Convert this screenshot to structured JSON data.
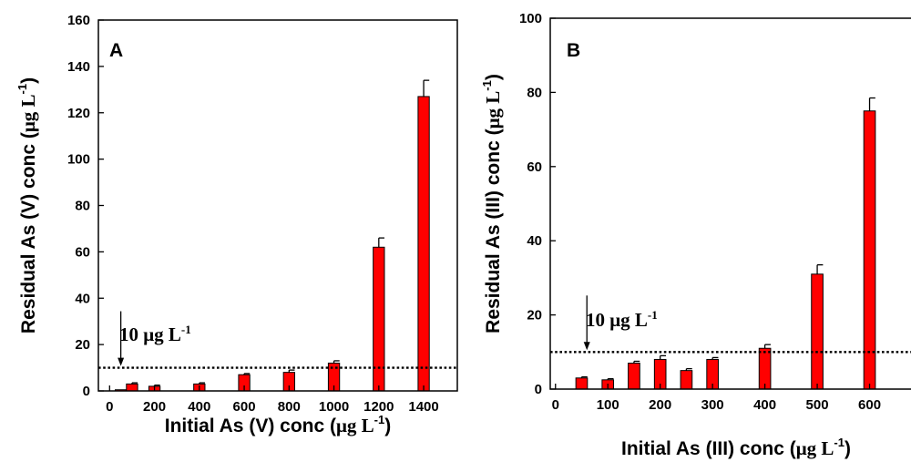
{
  "chart_data": [
    {
      "type": "bar",
      "panel_label": "A",
      "xlabel": "Initial As (V) conc (μg L-1)",
      "xlabel_parts": {
        "main": "Initial As (V) conc (",
        "unit": "μg L",
        "sup": "-1",
        "close": ")"
      },
      "ylabel": "Residual As (V) conc (μg L-1)",
      "ylabel_parts": {
        "main": "Residual As (V) conc (",
        "unit": "μg L",
        "sup": "-1",
        "close": ")"
      },
      "xlim": [
        -50,
        1550
      ],
      "ylim": [
        0,
        160
      ],
      "x_ticks": [
        "0",
        "200",
        "400",
        "600",
        "800",
        "1000",
        "1200",
        "1400"
      ],
      "x_tick_values": [
        0,
        200,
        400,
        600,
        800,
        1000,
        1200,
        1400
      ],
      "y_ticks": [
        "0",
        "20",
        "40",
        "60",
        "80",
        "100",
        "120",
        "140",
        "160"
      ],
      "y_tick_values": [
        0,
        20,
        40,
        60,
        80,
        100,
        120,
        140,
        160
      ],
      "bar_width": 50,
      "x": [
        50,
        100,
        200,
        400,
        600,
        800,
        1000,
        1200,
        1400
      ],
      "values": [
        0.5,
        3,
        2,
        3,
        7,
        8,
        12,
        62,
        127
      ],
      "errors": [
        0,
        0.5,
        0.5,
        0.5,
        0.5,
        1,
        1,
        4,
        7
      ],
      "bar_color": "#ff0000",
      "threshold": {
        "value": 10,
        "label": "10 μg L",
        "label_sup": "-1",
        "arrow_x": 50
      }
    },
    {
      "type": "bar",
      "panel_label": "B",
      "xlabel": "Initial As (III) conc (μg L-1)",
      "xlabel_parts": {
        "main": "Initial As (III) conc (",
        "unit": "μg L",
        "sup": "-1",
        "close": ")"
      },
      "ylabel": "Residual As (III) conc (μg L-1)",
      "ylabel_parts": {
        "main": "Residual As (III) conc (",
        "unit": "μg L",
        "sup": "-1",
        "close": ")"
      },
      "xlim": [
        -10,
        700
      ],
      "ylim": [
        0,
        100
      ],
      "x_ticks": [
        "0",
        "100",
        "200",
        "300",
        "400",
        "500",
        "600"
      ],
      "x_tick_values": [
        0,
        100,
        200,
        300,
        400,
        500,
        600
      ],
      "y_ticks": [
        "0",
        "20",
        "40",
        "60",
        "80",
        "100"
      ],
      "y_tick_values": [
        0,
        20,
        40,
        60,
        80,
        100
      ],
      "bar_width": 22,
      "x": [
        50,
        100,
        150,
        200,
        250,
        300,
        400,
        500,
        600
      ],
      "values": [
        3,
        2.5,
        7,
        8,
        5,
        8,
        11,
        31,
        75
      ],
      "errors": [
        0.3,
        0.3,
        0.5,
        1,
        0.5,
        0.5,
        1,
        2.5,
        3.5
      ],
      "bar_color": "#ff0000",
      "threshold": {
        "value": 10,
        "label": "10 μg L",
        "label_sup": "-1",
        "arrow_x": 60
      }
    }
  ]
}
